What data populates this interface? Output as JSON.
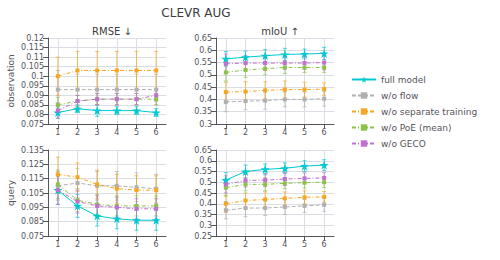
{
  "title": "CLEVR AUG",
  "legend": "right",
  "chart_data": [
    {
      "type": "line",
      "title": "RMSE ↓",
      "ylabel": "observation",
      "x": [
        1,
        2,
        3,
        4,
        5,
        6
      ],
      "xlim": [
        0.5,
        6.5
      ],
      "xticks": [
        1,
        2,
        3,
        4,
        5,
        6
      ],
      "ylim": [
        0.075,
        0.12
      ],
      "yticks": [
        0.075,
        0.08,
        0.085,
        0.09,
        0.095,
        0.1,
        0.105,
        0.11,
        0.115,
        0.12
      ],
      "grid": true,
      "series": [
        {
          "name": "full model",
          "color": "#00c8d0",
          "line_style": "solid",
          "marker": "star",
          "values": [
            0.081,
            0.083,
            0.082,
            0.082,
            0.082,
            0.081
          ],
          "errors": [
            0.003,
            0.002,
            0.003,
            0.002,
            0.002,
            0.002
          ]
        },
        {
          "name": "w/o flow",
          "color": "#b0b0b0",
          "line_style": "dashed",
          "marker": "square",
          "values": [
            0.093,
            0.093,
            0.093,
            0.093,
            0.093,
            0.093
          ],
          "errors": [
            0.01,
            0.008,
            0.008,
            0.008,
            0.008,
            0.008
          ]
        },
        {
          "name": "w/o separate training",
          "color": "#f5a623",
          "line_style": "dashdot",
          "marker": "square",
          "values": [
            0.1,
            0.103,
            0.103,
            0.103,
            0.103,
            0.103
          ],
          "errors": [
            0.01,
            0.01,
            0.01,
            0.01,
            0.01,
            0.01
          ]
        },
        {
          "name": "w/o PoE (mean)",
          "color": "#8bc34a",
          "line_style": "dashdot",
          "marker": "square",
          "values": [
            0.085,
            0.087,
            0.088,
            0.088,
            0.088,
            0.088
          ],
          "errors": [
            0.004,
            0.003,
            0.003,
            0.003,
            0.003,
            0.003
          ]
        },
        {
          "name": "w/o GECO",
          "color": "#c070d0",
          "line_style": "dashdot",
          "marker": "square",
          "values": [
            0.082,
            0.087,
            0.088,
            0.088,
            0.088,
            0.09
          ],
          "errors": [
            0.004,
            0.003,
            0.003,
            0.003,
            0.003,
            0.003
          ]
        }
      ]
    },
    {
      "type": "line",
      "title": "mIoU ↑",
      "x": [
        1,
        2,
        3,
        4,
        5,
        6
      ],
      "xlim": [
        0.5,
        6.5
      ],
      "xticks": [
        1,
        2,
        3,
        4,
        5,
        6
      ],
      "ylim": [
        0.3,
        0.65
      ],
      "yticks": [
        0.3,
        0.35,
        0.4,
        0.45,
        0.5,
        0.55,
        0.6,
        0.65
      ],
      "grid": true,
      "series": [
        {
          "name": "full model",
          "color": "#00c8d0",
          "line_style": "solid",
          "marker": "star",
          "values": [
            0.565,
            0.572,
            0.578,
            0.583,
            0.585,
            0.587
          ],
          "errors": [
            0.03,
            0.025,
            0.025,
            0.025,
            0.02,
            0.025
          ]
        },
        {
          "name": "w/o flow",
          "color": "#b0b0b0",
          "line_style": "dashed",
          "marker": "square",
          "values": [
            0.39,
            0.393,
            0.395,
            0.4,
            0.4,
            0.403
          ],
          "errors": [
            0.04,
            0.035,
            0.035,
            0.03,
            0.03,
            0.03
          ]
        },
        {
          "name": "w/o separate training",
          "color": "#f5a623",
          "line_style": "dashdot",
          "marker": "square",
          "values": [
            0.43,
            0.432,
            0.437,
            0.44,
            0.44,
            0.442
          ],
          "errors": [
            0.04,
            0.04,
            0.035,
            0.035,
            0.03,
            0.025
          ]
        },
        {
          "name": "w/o PoE (mean)",
          "color": "#8bc34a",
          "line_style": "dashdot",
          "marker": "square",
          "values": [
            0.51,
            0.52,
            0.525,
            0.53,
            0.53,
            0.53
          ],
          "errors": [
            0.035,
            0.03,
            0.025,
            0.025,
            0.02,
            0.02
          ]
        },
        {
          "name": "w/o GECO",
          "color": "#c070d0",
          "line_style": "dashdot",
          "marker": "square",
          "values": [
            0.545,
            0.548,
            0.548,
            0.548,
            0.548,
            0.55
          ],
          "errors": [
            0.04,
            0.03,
            0.03,
            0.025,
            0.025,
            0.03
          ]
        }
      ]
    },
    {
      "type": "line",
      "ylabel": "query",
      "x": [
        1,
        2,
        3,
        4,
        5,
        6
      ],
      "xlim": [
        0.5,
        6.5
      ],
      "xticks": [
        1,
        2,
        3,
        4,
        5,
        6
      ],
      "ylim": [
        0.075,
        0.135
      ],
      "yticks": [
        0.075,
        0.085,
        0.095,
        0.105,
        0.115,
        0.125,
        0.135
      ],
      "grid": true,
      "series": [
        {
          "name": "full model",
          "color": "#00c8d0",
          "line_style": "solid",
          "marker": "star",
          "values": [
            0.107,
            0.096,
            0.089,
            0.087,
            0.086,
            0.086
          ],
          "errors": [
            0.01,
            0.008,
            0.007,
            0.007,
            0.007,
            0.007
          ]
        },
        {
          "name": "w/o flow",
          "color": "#b0b0b0",
          "line_style": "dashed",
          "marker": "square",
          "values": [
            0.11,
            0.112,
            0.11,
            0.11,
            0.109,
            0.108
          ],
          "errors": [
            0.01,
            0.01,
            0.01,
            0.01,
            0.01,
            0.01
          ]
        },
        {
          "name": "w/o separate training",
          "color": "#f5a623",
          "line_style": "dashdot",
          "marker": "square",
          "values": [
            0.118,
            0.116,
            0.111,
            0.108,
            0.107,
            0.107
          ],
          "errors": [
            0.012,
            0.01,
            0.01,
            0.01,
            0.01,
            0.01
          ]
        },
        {
          "name": "w/o PoE (mean)",
          "color": "#8bc34a",
          "line_style": "dashdot",
          "marker": "square",
          "values": [
            0.111,
            0.1,
            0.097,
            0.096,
            0.096,
            0.096
          ],
          "errors": [
            0.01,
            0.008,
            0.007,
            0.007,
            0.007,
            0.007
          ]
        },
        {
          "name": "w/o GECO",
          "color": "#c070d0",
          "line_style": "dashdot",
          "marker": "square",
          "values": [
            0.107,
            0.099,
            0.096,
            0.095,
            0.094,
            0.094
          ],
          "errors": [
            0.01,
            0.008,
            0.007,
            0.007,
            0.007,
            0.007
          ]
        }
      ]
    },
    {
      "type": "line",
      "x": [
        1,
        2,
        3,
        4,
        5,
        6
      ],
      "xlim": [
        0.5,
        6.5
      ],
      "xticks": [
        1,
        2,
        3,
        4,
        5,
        6
      ],
      "ylim": [
        0.25,
        0.65
      ],
      "yticks": [
        0.25,
        0.3,
        0.35,
        0.4,
        0.45,
        0.5,
        0.55,
        0.6,
        0.65
      ],
      "grid": true,
      "series": [
        {
          "name": "full model",
          "color": "#00c8d0",
          "line_style": "solid",
          "marker": "star",
          "values": [
            0.51,
            0.55,
            0.56,
            0.565,
            0.575,
            0.58
          ],
          "errors": [
            0.035,
            0.03,
            0.025,
            0.025,
            0.025,
            0.025
          ]
        },
        {
          "name": "w/o flow",
          "color": "#b0b0b0",
          "line_style": "dashed",
          "marker": "square",
          "values": [
            0.37,
            0.38,
            0.38,
            0.385,
            0.39,
            0.395
          ],
          "errors": [
            0.04,
            0.04,
            0.035,
            0.035,
            0.03,
            0.03
          ]
        },
        {
          "name": "w/o separate training",
          "color": "#f5a623",
          "line_style": "dashdot",
          "marker": "square",
          "values": [
            0.4,
            0.415,
            0.42,
            0.425,
            0.43,
            0.432
          ],
          "errors": [
            0.04,
            0.035,
            0.035,
            0.03,
            0.03,
            0.025
          ]
        },
        {
          "name": "w/o PoE (mean)",
          "color": "#8bc34a",
          "line_style": "dashdot",
          "marker": "square",
          "values": [
            0.475,
            0.49,
            0.49,
            0.495,
            0.498,
            0.5
          ],
          "errors": [
            0.04,
            0.03,
            0.03,
            0.025,
            0.025,
            0.025
          ]
        },
        {
          "name": "w/o GECO",
          "color": "#c070d0",
          "line_style": "dashdot",
          "marker": "square",
          "values": [
            0.49,
            0.508,
            0.51,
            0.515,
            0.518,
            0.52
          ],
          "errors": [
            0.04,
            0.03,
            0.03,
            0.03,
            0.025,
            0.025
          ]
        }
      ]
    }
  ]
}
